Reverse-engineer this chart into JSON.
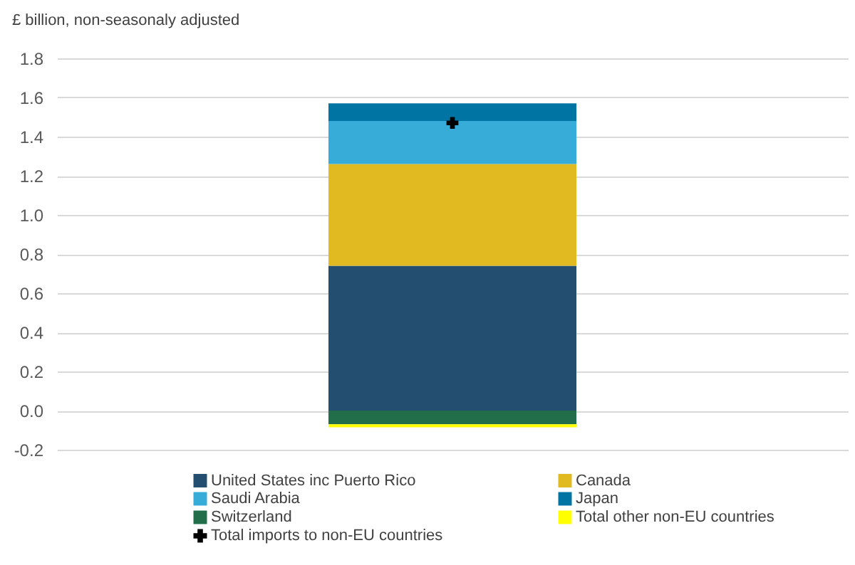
{
  "chart_data": {
    "type": "bar",
    "stacked": true,
    "ylabel": "£ billion, non-seasonaly adjusted",
    "categories": [
      null
    ],
    "series": [
      {
        "name": "United States inc Puerto Rico",
        "color": "#234e70",
        "values": [
          0.74
        ]
      },
      {
        "name": "Canada",
        "color": "#e1ba21",
        "values": [
          0.52
        ]
      },
      {
        "name": "Saudi Arabia",
        "color": "#37acd8",
        "values": [
          0.22
        ]
      },
      {
        "name": "Japan",
        "color": "#0074a3",
        "values": [
          0.09
        ]
      },
      {
        "name": "Switzerland",
        "color": "#236e4a",
        "values": [
          -0.07
        ]
      },
      {
        "name": "Total other non-EU countries",
        "color": "#ffff00",
        "values": [
          -0.015
        ]
      },
      {
        "name": "Total imports to non-EU countries",
        "type": "scatter",
        "marker": "cross",
        "color": "#000000",
        "values": [
          1.47
        ]
      }
    ],
    "ylim": [
      -0.2,
      1.8
    ],
    "yticks": [
      -0.2,
      {
        "value": 0,
        "label": "0.0"
      },
      0.2,
      0.4,
      0.6,
      0.8,
      {
        "value": 1,
        "label": "1.0"
      },
      1.2,
      1.4,
      1.6,
      1.8
    ],
    "grid": "y",
    "legend": "bottom",
    "tick_labels": "y"
  }
}
